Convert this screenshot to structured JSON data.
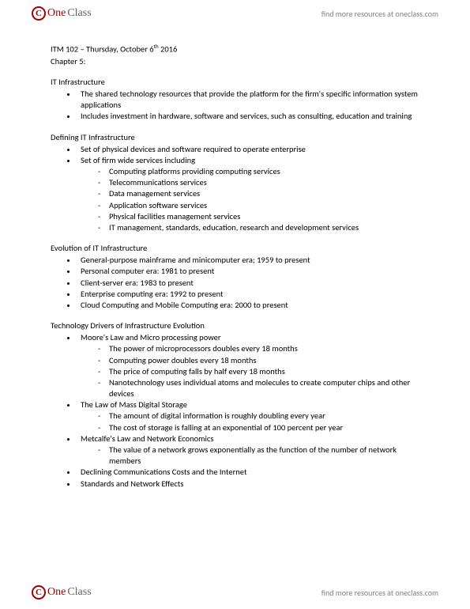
{
  "brand": {
    "one": "One",
    "class": "Class",
    "icon_letter": "C"
  },
  "header_link": "find more resources at oneclass.com",
  "footer_link": "find more resources at oneclass.com",
  "doc": {
    "title_line": "ITM 102 – Thursday, October 6",
    "title_sup": "th",
    "title_year": " 2016",
    "chapter": "Chapter 5:",
    "sections": [
      {
        "heading": "IT Infrastructure",
        "bullets": [
          {
            "text": "The shared technology resources that provide the platform for the firm's specific information system applications"
          },
          {
            "text": "Includes investment in hardware, software and services, such as consulting, education and training"
          }
        ]
      },
      {
        "heading": "Defining IT Infrastructure",
        "bullets": [
          {
            "text": "Set of physical devices and software required to operate enterprise"
          },
          {
            "text": "Set of firm wide services including",
            "sub": [
              "Computing platforms providing computing services",
              "Telecommunications services",
              "Data management services",
              "Application software services",
              "Physical facilities management services",
              "IT management, standards, education, research and development services"
            ]
          }
        ]
      },
      {
        "heading": "Evolution of IT Infrastructure",
        "bullets": [
          {
            "text": "General-purpose mainframe and minicomputer era; 1959 to present"
          },
          {
            "text": "Personal computer era: 1981 to present"
          },
          {
            "text": "Client-server era: 1983 to present"
          },
          {
            "text": "Enterprise computing era: 1992 to present"
          },
          {
            "text": "Cloud Computing and Mobile Computing era: 2000 to present"
          }
        ]
      },
      {
        "heading": "Technology Drivers of Infrastructure Evolution",
        "bullets": [
          {
            "text": "Moore's Law and Micro processing power",
            "sub": [
              "The power of microprocessors doubles every 18 months",
              "Computing power doubles every 18 months",
              "The price of computing falls by half every 18 months",
              "Nanotechnology uses individual atoms and molecules to create computer chips and other devices"
            ]
          },
          {
            "text": "The Law of Mass Digital Storage",
            "sub": [
              "The amount of digital information is roughly doubling every year",
              "The cost of storage is falling at an exponential of 100 percent per year"
            ]
          },
          {
            "text": "Metcalfe's Law and Network Economics",
            "sub": [
              "The value of a network grows exponentially as the function of the number of network members"
            ]
          },
          {
            "text": "Declining Communications Costs and the Internet"
          },
          {
            "text": "Standards and Network Effects"
          }
        ]
      }
    ]
  }
}
